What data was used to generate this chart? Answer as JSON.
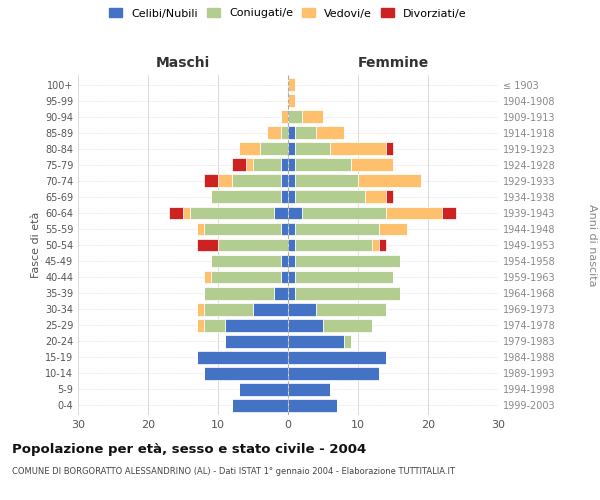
{
  "age_groups": [
    "0-4",
    "5-9",
    "10-14",
    "15-19",
    "20-24",
    "25-29",
    "30-34",
    "35-39",
    "40-44",
    "45-49",
    "50-54",
    "55-59",
    "60-64",
    "65-69",
    "70-74",
    "75-79",
    "80-84",
    "85-89",
    "90-94",
    "95-99",
    "100+"
  ],
  "birth_years": [
    "1999-2003",
    "1994-1998",
    "1989-1993",
    "1984-1988",
    "1979-1983",
    "1974-1978",
    "1969-1973",
    "1964-1968",
    "1959-1963",
    "1954-1958",
    "1949-1953",
    "1944-1948",
    "1939-1943",
    "1934-1938",
    "1929-1933",
    "1924-1928",
    "1919-1923",
    "1914-1918",
    "1909-1913",
    "1904-1908",
    "≤ 1903"
  ],
  "colors": {
    "celibi": "#4472c4",
    "coniugati": "#b3cc8f",
    "vedovi": "#ffc06e",
    "divorziati": "#cc2222"
  },
  "males": {
    "celibi": [
      8,
      7,
      12,
      13,
      9,
      9,
      5,
      2,
      1,
      1,
      0,
      1,
      2,
      1,
      1,
      1,
      0,
      0,
      0,
      0,
      0
    ],
    "coniugati": [
      0,
      0,
      0,
      0,
      0,
      3,
      7,
      10,
      10,
      10,
      10,
      11,
      12,
      10,
      7,
      4,
      4,
      1,
      0,
      0,
      0
    ],
    "vedovi": [
      0,
      0,
      0,
      0,
      0,
      1,
      1,
      0,
      1,
      0,
      0,
      1,
      1,
      0,
      2,
      1,
      3,
      2,
      1,
      0,
      0
    ],
    "divorziati": [
      0,
      0,
      0,
      0,
      0,
      0,
      0,
      0,
      0,
      0,
      3,
      0,
      2,
      0,
      2,
      2,
      0,
      0,
      0,
      0,
      0
    ]
  },
  "females": {
    "celibi": [
      7,
      6,
      13,
      14,
      8,
      5,
      4,
      1,
      1,
      1,
      1,
      1,
      2,
      1,
      1,
      1,
      1,
      1,
      0,
      0,
      0
    ],
    "coniugati": [
      0,
      0,
      0,
      0,
      1,
      7,
      10,
      15,
      14,
      15,
      11,
      12,
      12,
      10,
      9,
      8,
      5,
      3,
      2,
      0,
      0
    ],
    "vedovi": [
      0,
      0,
      0,
      0,
      0,
      0,
      0,
      0,
      0,
      0,
      1,
      4,
      8,
      3,
      9,
      6,
      8,
      4,
      3,
      1,
      1
    ],
    "divorziati": [
      0,
      0,
      0,
      0,
      0,
      0,
      0,
      0,
      0,
      0,
      1,
      0,
      2,
      1,
      0,
      0,
      1,
      0,
      0,
      0,
      0
    ]
  },
  "title": "Popolazione per età, sesso e stato civile - 2004",
  "subtitle": "COMUNE DI BORGORATTO ALESSANDRINO (AL) - Dati ISTAT 1° gennaio 2004 - Elaborazione TUTTITALIA.IT",
  "xlabel_left": "Maschi",
  "xlabel_right": "Femmine",
  "ylabel_left": "Fasce di età",
  "ylabel_right": "Anni di nascita",
  "xlim": 30,
  "legend_labels": [
    "Celibi/Nubili",
    "Coniugati/e",
    "Vedovi/e",
    "Divorziati/e"
  ],
  "background_color": "#ffffff",
  "bar_height": 0.8
}
